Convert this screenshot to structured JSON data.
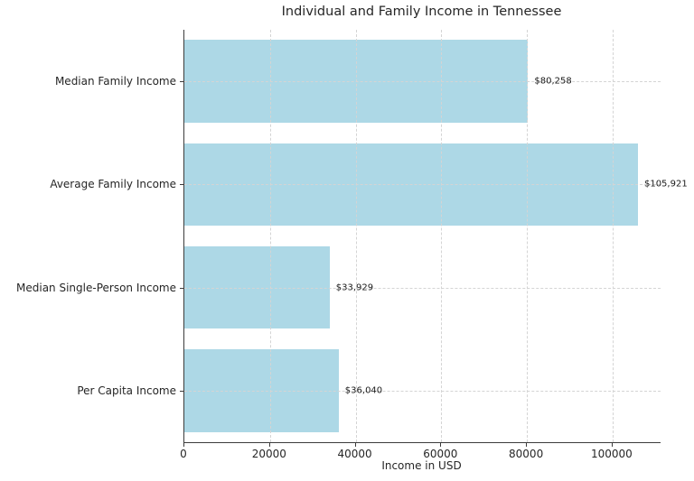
{
  "chart_data": {
    "type": "bar",
    "orientation": "horizontal",
    "title": "Individual and Family Income in Tennessee",
    "xlabel": "Income in USD",
    "ylabel": "",
    "categories": [
      "Median Family Income",
      "Average Family Income",
      "Median Single-Person Income",
      "Per Capita Income"
    ],
    "values": [
      80258,
      105921,
      33929,
      36040
    ],
    "value_labels": [
      "$80,258",
      "$105,921",
      "$33,929",
      "$36,040"
    ],
    "x_ticks": [
      0,
      20000,
      40000,
      60000,
      80000,
      100000
    ],
    "x_tick_labels": [
      "0",
      "20000",
      "40000",
      "60000",
      "80000",
      "100000"
    ],
    "xlim": [
      0,
      111200
    ],
    "bar_color": "#ADD8E6",
    "grid": true,
    "grid_style": "dashed",
    "legend": "none"
  }
}
